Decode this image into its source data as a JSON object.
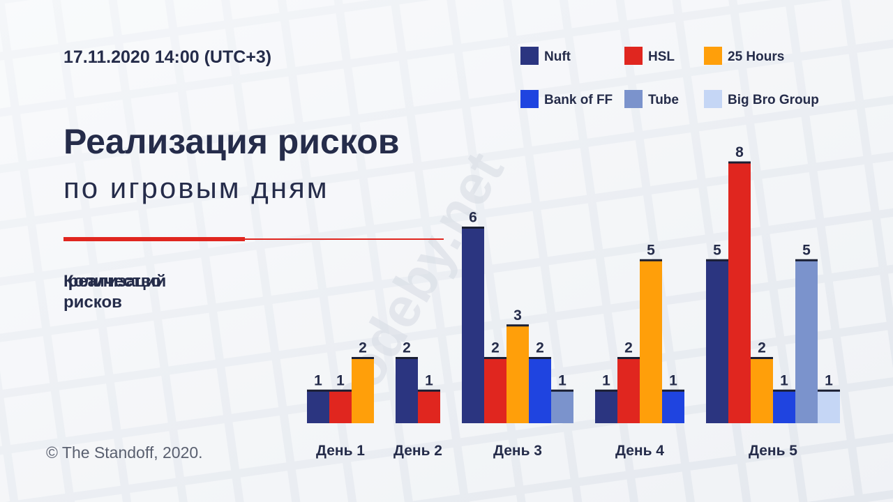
{
  "chart_data": {
    "type": "bar",
    "date": "17.11.2020 14:00 (UTC+3)",
    "title": "Реализация рисков",
    "subtitle": "по игровым дням",
    "y_label": "Количество реализаций рисков",
    "copyright": "© The Standoff, 2020.",
    "watermark": "codeby.net",
    "categories": [
      "День 1",
      "День 2",
      "День 3",
      "День 4",
      "День 5"
    ],
    "series": [
      {
        "name": "Nuft",
        "color": "#2b3580",
        "values": [
          1,
          2,
          6,
          1,
          5
        ]
      },
      {
        "name": "HSL",
        "color": "#e0261f",
        "values": [
          1,
          1,
          2,
          2,
          8
        ]
      },
      {
        "name": "25 Hours",
        "color": "#ff9f0a",
        "values": [
          2,
          null,
          3,
          5,
          2
        ]
      },
      {
        "name": "Bank of FF",
        "color": "#1f44e0",
        "values": [
          null,
          null,
          2,
          1,
          1
        ]
      },
      {
        "name": "Tube",
        "color": "#7b93cc",
        "values": [
          null,
          null,
          1,
          null,
          5
        ]
      },
      {
        "name": "Big Bro Group",
        "color": "#c5d6f5",
        "values": [
          null,
          null,
          null,
          null,
          1
        ]
      }
    ]
  }
}
